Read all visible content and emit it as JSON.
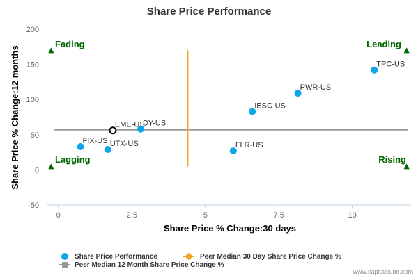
{
  "chart_data": {
    "type": "scatter",
    "title": "Share Price Performance",
    "xlabel": "Share Price % Change:30 days",
    "ylabel": "Share Price % Change:12 months",
    "xlim": [
      -0.4,
      12
    ],
    "ylim": [
      -50,
      200
    ],
    "xticks": [
      {
        "value": 0,
        "label": "0"
      },
      {
        "value": 2.5,
        "label": "2.5"
      },
      {
        "value": 5,
        "label": "5"
      },
      {
        "value": 7.5,
        "label": "7.5"
      },
      {
        "value": 10,
        "label": "10"
      }
    ],
    "yticks": [
      {
        "value": -50,
        "label": "-50"
      },
      {
        "value": 0,
        "label": "0"
      },
      {
        "value": 50,
        "label": "50"
      },
      {
        "value": 100,
        "label": "100"
      },
      {
        "value": 150,
        "label": "150"
      },
      {
        "value": 200,
        "label": "200"
      }
    ],
    "series": [
      {
        "name": "Share Price Performance",
        "color": "#0ea5e9",
        "points": [
          {
            "label": "EME-US",
            "x": 1.85,
            "y": 56,
            "highlight": true
          },
          {
            "label": "DY-US",
            "x": 2.8,
            "y": 58
          },
          {
            "label": "FIX-US",
            "x": 0.75,
            "y": 33
          },
          {
            "label": "UTX-US",
            "x": 1.68,
            "y": 29
          },
          {
            "label": "FLR-US",
            "x": 5.95,
            "y": 27
          },
          {
            "label": "IESC-US",
            "x": 6.6,
            "y": 83
          },
          {
            "label": "PWR-US",
            "x": 8.15,
            "y": 109
          },
          {
            "label": "TPC-US",
            "x": 10.75,
            "y": 142
          }
        ]
      }
    ],
    "median_30d": {
      "name": "Peer Median 30 Day Share Price Change %",
      "value": 4.4,
      "color": "#f5a623"
    },
    "median_12m": {
      "name": "Peer Median 12 Month Share Price Change %",
      "value": 57,
      "color": "#999999"
    },
    "quadrants": {
      "fading": "Fading",
      "leading": "Leading",
      "lagging": "Lagging",
      "rising": "Rising",
      "color": "#006600"
    },
    "grid": false,
    "legend_position": "bottom-left"
  },
  "credit": "www.capitalcube.com"
}
